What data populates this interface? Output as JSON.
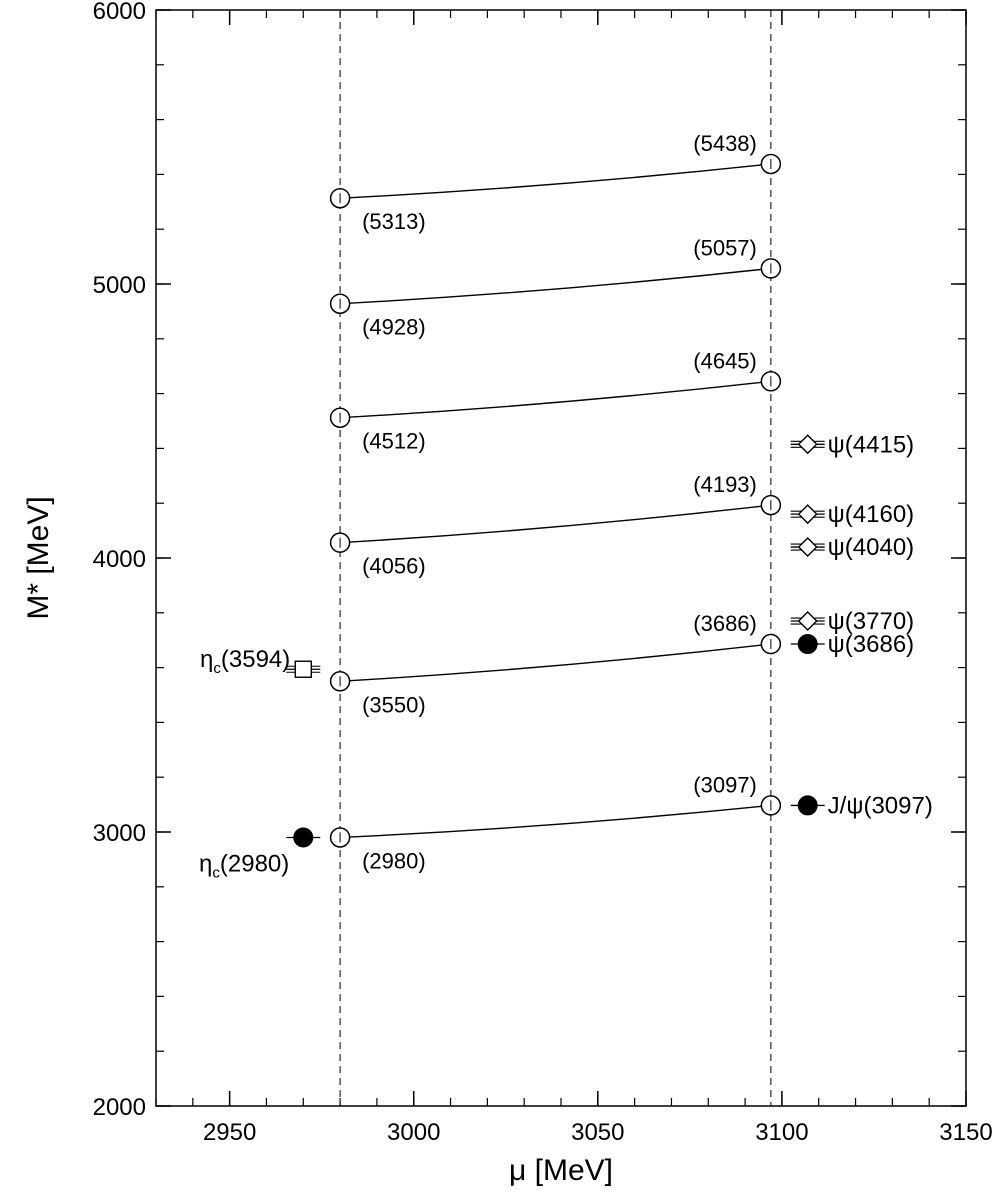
{
  "chart_data": {
    "type": "scatter",
    "xlabel": "μ [MeV]",
    "ylabel": "M* [MeV]",
    "xlim": [
      2930,
      3150
    ],
    "ylim": [
      2000,
      6000
    ],
    "xticks": [
      2950,
      3000,
      3050,
      3100,
      3150
    ],
    "yticks": [
      2000,
      3000,
      4000,
      5000,
      6000
    ],
    "x_minor_step": 10,
    "y_minor_step": 200,
    "reference_lines": [
      {
        "orientation": "vertical",
        "x": 2980,
        "style": "dashed"
      },
      {
        "orientation": "vertical",
        "x": 3097,
        "style": "dashed"
      }
    ],
    "series": [
      {
        "values": [
          {
            "x": 2980,
            "y": 2980,
            "label": "(2980)"
          },
          {
            "x": 3097,
            "y": 3097,
            "label": "(3097)"
          }
        ]
      },
      {
        "values": [
          {
            "x": 2980,
            "y": 3550,
            "label": "(3550)"
          },
          {
            "x": 3097,
            "y": 3686,
            "label": "(3686)"
          }
        ]
      },
      {
        "values": [
          {
            "x": 2980,
            "y": 4056,
            "label": "(4056)"
          },
          {
            "x": 3097,
            "y": 4193,
            "label": "(4193)"
          }
        ]
      },
      {
        "values": [
          {
            "x": 2980,
            "y": 4512,
            "label": "(4512)"
          },
          {
            "x": 3097,
            "y": 4645,
            "label": "(4645)"
          }
        ]
      },
      {
        "values": [
          {
            "x": 2980,
            "y": 4928,
            "label": "(4928)"
          },
          {
            "x": 3097,
            "y": 5057,
            "label": "(5057)"
          }
        ]
      },
      {
        "values": [
          {
            "x": 2980,
            "y": 5313,
            "label": "(5313)"
          },
          {
            "x": 3097,
            "y": 5438,
            "label": "(5438)"
          }
        ]
      }
    ],
    "experimental": [
      {
        "name": "η",
        "sub": "c",
        "rest": "(2980)",
        "x": 2970,
        "y": 2980,
        "marker": "filled-circle",
        "side": "left"
      },
      {
        "name": "η",
        "sub": "c",
        "rest": "(3594)",
        "x": 2970,
        "y": 3594,
        "marker": "open-square",
        "side": "left"
      },
      {
        "name": "J/ψ(3097)",
        "x": 3107,
        "y": 3097,
        "marker": "filled-circle",
        "side": "right"
      },
      {
        "name": "ψ(3686)",
        "x": 3107,
        "y": 3686,
        "marker": "filled-circle",
        "side": "right"
      },
      {
        "name": "ψ(3770)",
        "x": 3107,
        "y": 3770,
        "marker": "open-diamond",
        "side": "right"
      },
      {
        "name": "ψ(4040)",
        "x": 3107,
        "y": 4040,
        "marker": "open-diamond",
        "side": "right"
      },
      {
        "name": "ψ(4160)",
        "x": 3107,
        "y": 4160,
        "marker": "open-diamond",
        "side": "right"
      },
      {
        "name": "ψ(4415)",
        "x": 3107,
        "y": 4415,
        "marker": "open-diamond",
        "side": "right"
      }
    ]
  }
}
